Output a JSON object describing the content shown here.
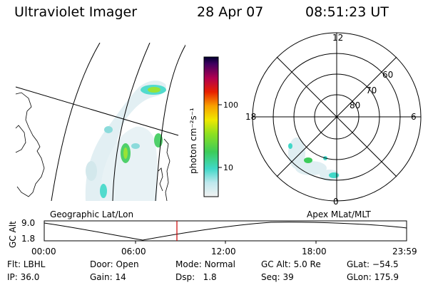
{
  "header": {
    "instrument": "Ultraviolet Imager",
    "date": "28 Apr 07",
    "time": "08:51:23 UT"
  },
  "colorbar": {
    "unit_label": "photon cm⁻²s⁻¹",
    "ticks": [
      "100",
      "10"
    ]
  },
  "polar_plot": {
    "mlt_labels": {
      "top": "12",
      "left": "18",
      "right": "6",
      "bottom": "0"
    },
    "lat_labels": [
      "60",
      "70",
      "80"
    ]
  },
  "timeline": {
    "left_label": "Geographic Lat/Lon",
    "right_label": "Apex MLat/MLT",
    "axis_title": "GC Alt",
    "y_ticks": [
      "9.0",
      "1.8"
    ],
    "x_ticks": [
      "00:00",
      "06:00",
      "12:00",
      "18:00",
      "23:59"
    ],
    "marker_color": "#cc0000"
  },
  "status": {
    "filter_label": "Flt:",
    "filter_value": "LBHL",
    "door_label": "Door:",
    "door_value": "Open",
    "mode_label": "Mode:",
    "mode_value": "Normal",
    "gcalt_label": "GC Alt:",
    "gcalt_value": "5.0 Re",
    "glat_label": "GLat:",
    "glat_value": "−54.5",
    "ip_label": "IP:",
    "ip_value": "36.0",
    "gain_label": "Gain:",
    "gain_value": "14",
    "dsp_label": "Dsp:",
    "dsp_value": "1.8",
    "seq_label": "Seq:",
    "seq_value": "39",
    "glon_label": "GLon:",
    "glon_value": "175.9"
  }
}
